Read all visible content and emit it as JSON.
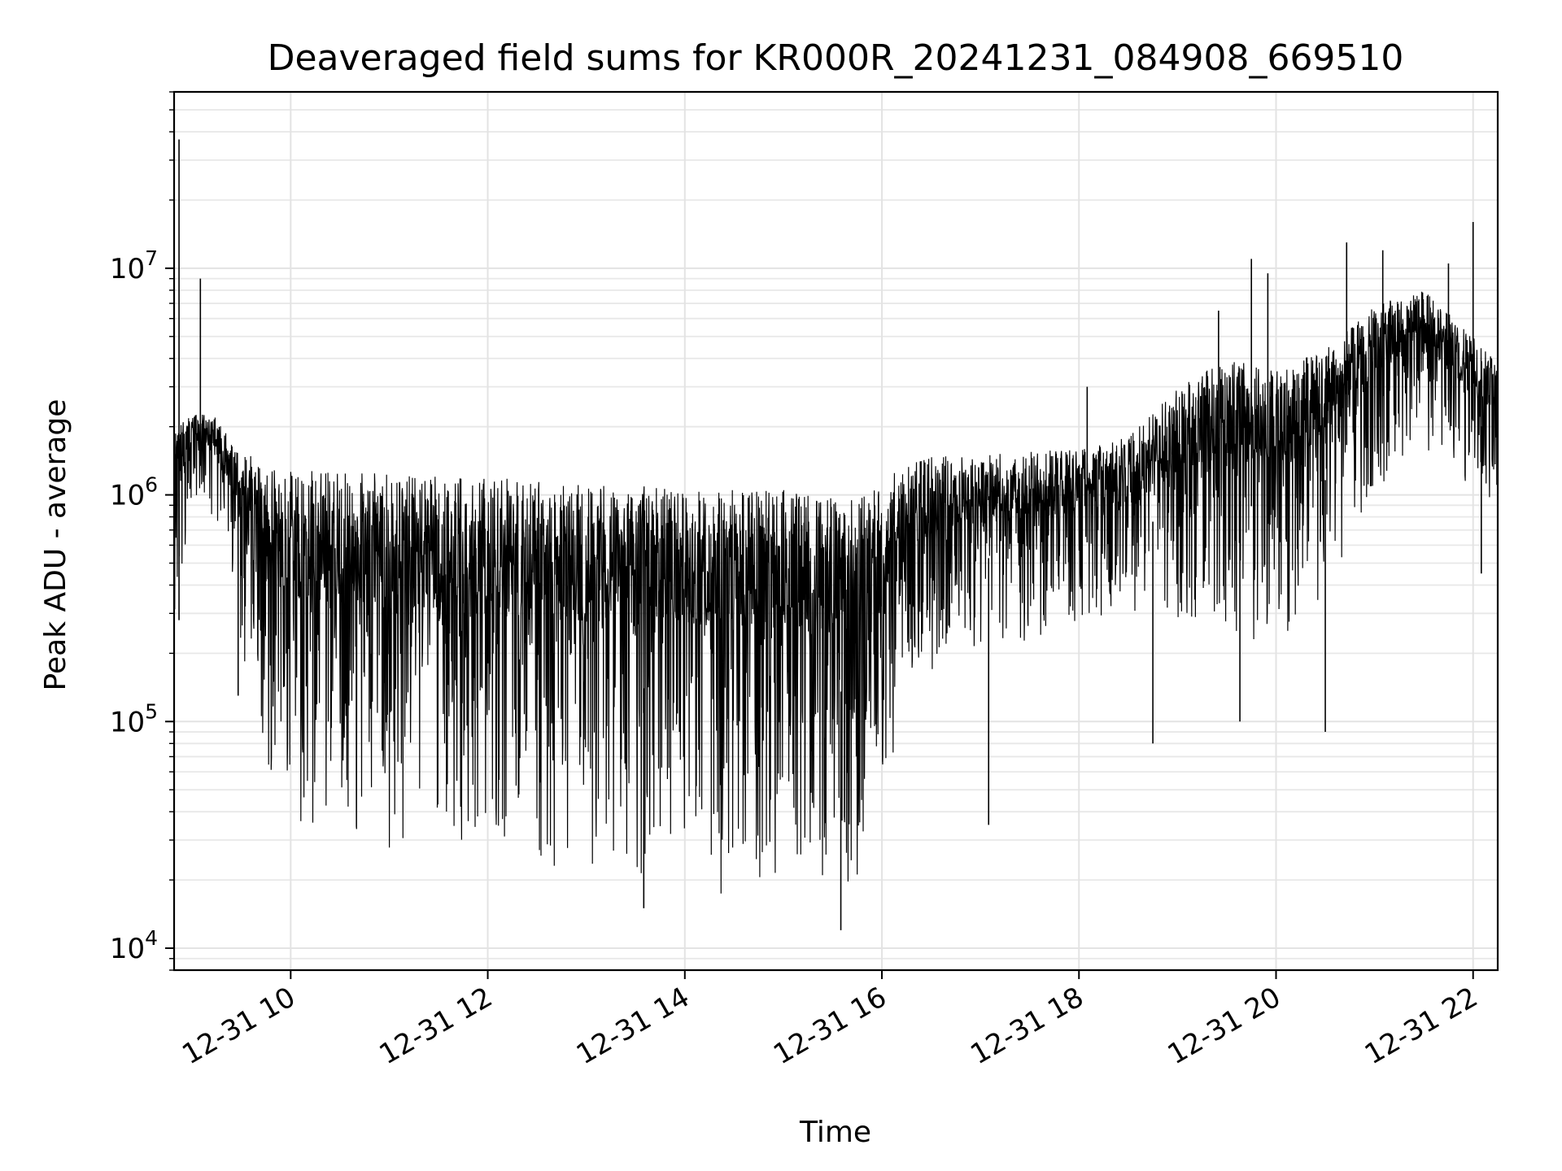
{
  "chart_data": {
    "type": "line",
    "title": "Deaveraged field sums for KR000R_20241231_084908_669510",
    "xlabel": "Time",
    "ylabel": "Peak ADU - average",
    "y_scale": "log",
    "ylim": [
      8000,
      60000000
    ],
    "xlim": [
      "12-31 08:49",
      "12-31 22:15"
    ],
    "grid": true,
    "legend": "none",
    "line_color": "#000000",
    "x_ticks": [
      {
        "value": "12-31 10:00",
        "label": "12-31 10"
      },
      {
        "value": "12-31 12:00",
        "label": "12-31 12"
      },
      {
        "value": "12-31 14:00",
        "label": "12-31 14"
      },
      {
        "value": "12-31 16:00",
        "label": "12-31 16"
      },
      {
        "value": "12-31 18:00",
        "label": "12-31 18"
      },
      {
        "value": "12-31 20:00",
        "label": "12-31 20"
      },
      {
        "value": "12-31 22:00",
        "label": "12-31 22"
      }
    ],
    "y_ticks": [
      {
        "value": 10000,
        "base": "10",
        "exp": "4"
      },
      {
        "value": 100000,
        "base": "10",
        "exp": "5"
      },
      {
        "value": 1000000,
        "base": "10",
        "exp": "6"
      },
      {
        "value": 10000000,
        "base": "10",
        "exp": "7"
      }
    ],
    "series": [
      {
        "envelope": [
          {
            "t": "12-31 08:49",
            "upper": 1900000,
            "lower": 290000
          },
          {
            "t": "12-31 09:00",
            "upper": 2300000,
            "lower": 900000
          },
          {
            "t": "12-31 09:15",
            "upper": 2300000,
            "lower": 600000
          },
          {
            "t": "12-31 09:25",
            "upper": 1600000,
            "lower": 400000
          },
          {
            "t": "12-31 09:35",
            "upper": 1500000,
            "lower": 90000
          },
          {
            "t": "12-31 09:45",
            "upper": 1300000,
            "lower": 45000
          },
          {
            "t": "12-31 10:00",
            "upper": 1300000,
            "lower": 30000
          },
          {
            "t": "12-31 10:30",
            "upper": 1250000,
            "lower": 28000
          },
          {
            "t": "12-31 11:00",
            "upper": 1250000,
            "lower": 25000
          },
          {
            "t": "12-31 11:30",
            "upper": 1200000,
            "lower": 24000
          },
          {
            "t": "12-31 12:00",
            "upper": 1200000,
            "lower": 22000
          },
          {
            "t": "12-31 12:30",
            "upper": 1150000,
            "lower": 20000
          },
          {
            "t": "12-31 13:00",
            "upper": 1100000,
            "lower": 19000
          },
          {
            "t": "12-31 13:30",
            "upper": 1100000,
            "lower": 18000
          },
          {
            "t": "12-31 14:00",
            "upper": 1050000,
            "lower": 18000
          },
          {
            "t": "12-31 14:30",
            "upper": 1050000,
            "lower": 17000
          },
          {
            "t": "12-31 15:00",
            "upper": 1050000,
            "lower": 16000
          },
          {
            "t": "12-31 15:30",
            "upper": 1000000,
            "lower": 17000
          },
          {
            "t": "12-31 16:00",
            "upper": 1100000,
            "lower": 25000
          },
          {
            "t": "12-31 16:10",
            "upper": 1300000,
            "lower": 110000
          },
          {
            "t": "12-31 16:30",
            "upper": 1500000,
            "lower": 150000
          },
          {
            "t": "12-31 17:00",
            "upper": 1500000,
            "lower": 180000
          },
          {
            "t": "12-31 17:30",
            "upper": 1550000,
            "lower": 200000
          },
          {
            "t": "12-31 18:00",
            "upper": 1600000,
            "lower": 230000
          },
          {
            "t": "12-31 18:30",
            "upper": 1800000,
            "lower": 250000
          },
          {
            "t": "12-31 19:00",
            "upper": 3000000,
            "lower": 250000
          },
          {
            "t": "12-31 19:30",
            "upper": 4000000,
            "lower": 250000
          },
          {
            "t": "12-31 20:00",
            "upper": 3500000,
            "lower": 180000
          },
          {
            "t": "12-31 20:30",
            "upper": 4500000,
            "lower": 300000
          },
          {
            "t": "12-31 21:00",
            "upper": 7000000,
            "lower": 1000000
          },
          {
            "t": "12-31 21:30",
            "upper": 8000000,
            "lower": 1300000
          },
          {
            "t": "12-31 22:00",
            "upper": 5000000,
            "lower": 900000
          },
          {
            "t": "12-31 22:15",
            "upper": 4000000,
            "lower": 800000
          }
        ],
        "spikes": [
          {
            "t": "12-31 08:52",
            "value": 37000000
          },
          {
            "t": "12-31 08:52",
            "value": 280000
          },
          {
            "t": "12-31 09:05",
            "value": 9000000
          },
          {
            "t": "12-31 09:28",
            "value": 130000
          },
          {
            "t": "12-31 13:35",
            "value": 15000
          },
          {
            "t": "12-31 15:35",
            "value": 12000
          },
          {
            "t": "12-31 17:05",
            "value": 35000
          },
          {
            "t": "12-31 18:05",
            "value": 3000000
          },
          {
            "t": "12-31 18:45",
            "value": 80000
          },
          {
            "t": "12-31 19:25",
            "value": 6500000
          },
          {
            "t": "12-31 19:38",
            "value": 100000
          },
          {
            "t": "12-31 19:45",
            "value": 11000000
          },
          {
            "t": "12-31 19:55",
            "value": 9500000
          },
          {
            "t": "12-31 20:30",
            "value": 90000
          },
          {
            "t": "12-31 20:43",
            "value": 13000000
          },
          {
            "t": "12-31 21:05",
            "value": 12000000
          },
          {
            "t": "12-31 21:45",
            "value": 10500000
          },
          {
            "t": "12-31 22:00",
            "value": 16000000
          },
          {
            "t": "12-31 22:05",
            "value": 450000
          }
        ]
      }
    ]
  }
}
